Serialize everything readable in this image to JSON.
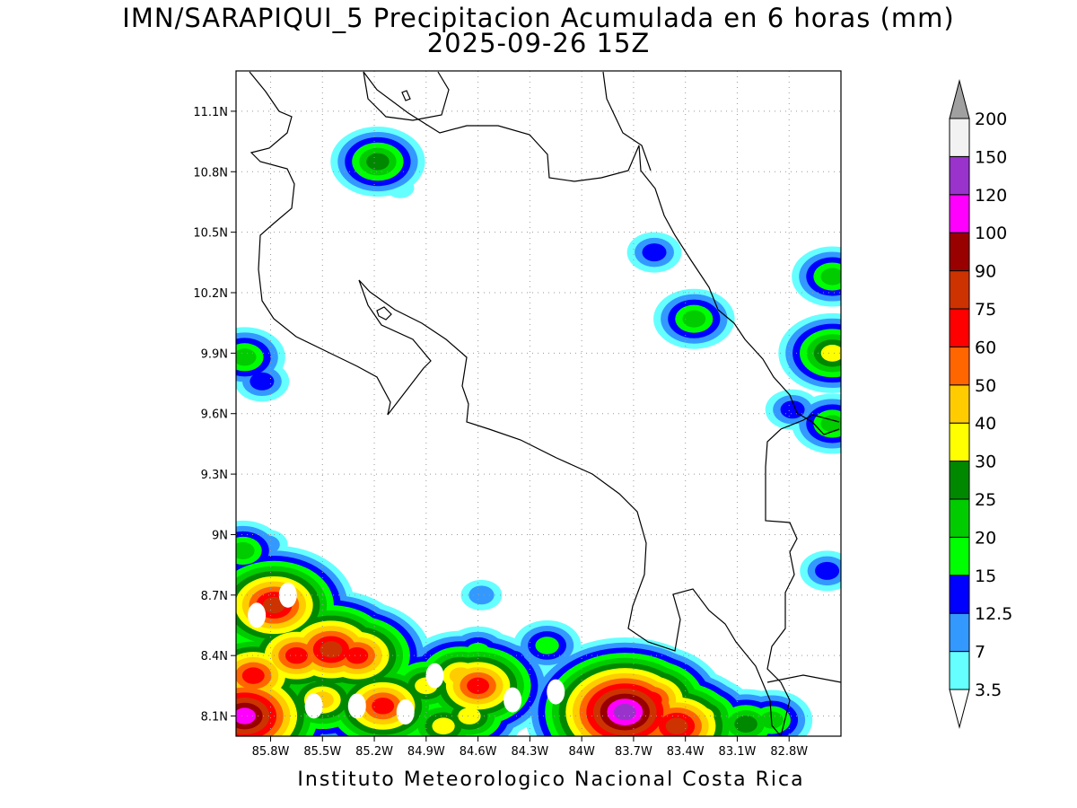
{
  "header": {
    "title": "IMN/SARAPIQUI_5 Precipitacion Acumulada en 6 horas (mm)",
    "valid_time": "2025-09-26 15Z"
  },
  "footer": {
    "credit": "Instituto Meteorologico Nacional Costa Rica"
  },
  "axes": {
    "lat_labels": [
      "11.1N",
      "10.8N",
      "10.5N",
      "10.2N",
      "9.9N",
      "9.6N",
      "9.3N",
      "9N",
      "8.7N",
      "8.4N",
      "8.1N"
    ],
    "lat_values": [
      11.1,
      10.8,
      10.5,
      10.2,
      9.9,
      9.6,
      9.3,
      9.0,
      8.7,
      8.4,
      8.1
    ],
    "lon_labels": [
      "85.8W",
      "85.5W",
      "85.2W",
      "84.9W",
      "84.6W",
      "84.3W",
      "84W",
      "83.7W",
      "83.4W",
      "83.1W",
      "82.8W"
    ],
    "lon_values": [
      -85.8,
      -85.5,
      -85.2,
      -84.9,
      -84.6,
      -84.3,
      -84.0,
      -83.7,
      -83.4,
      -83.1,
      -82.8
    ],
    "lon_range": [
      -86.0,
      -82.5
    ],
    "lat_range": [
      8.0,
      11.3
    ],
    "grid": true
  },
  "colorbar": {
    "unit": "mm",
    "levels": [
      {
        "label": "3.5",
        "color": "#66ffff"
      },
      {
        "label": "7",
        "color": "#3399ff"
      },
      {
        "label": "12.5",
        "color": "#0000ff"
      },
      {
        "label": "15",
        "color": "#00ff00"
      },
      {
        "label": "20",
        "color": "#00cc00"
      },
      {
        "label": "25",
        "color": "#008800"
      },
      {
        "label": "30",
        "color": "#ffff00"
      },
      {
        "label": "40",
        "color": "#ffcc00"
      },
      {
        "label": "50",
        "color": "#ff6600"
      },
      {
        "label": "60",
        "color": "#ff0000"
      },
      {
        "label": "75",
        "color": "#cc3300"
      },
      {
        "label": "90",
        "color": "#990000"
      },
      {
        "label": "100",
        "color": "#ff00ff"
      },
      {
        "label": "120",
        "color": "#9933cc"
      },
      {
        "label": "150",
        "color": "#f2f2f2"
      },
      {
        "label": "200",
        "color": "#a0a0a0"
      }
    ]
  },
  "rain_cells": [
    {
      "lon": -85.18,
      "lat": 10.85,
      "amount": 25
    },
    {
      "lon": -85.05,
      "lat": 10.72,
      "amount": 3.5
    },
    {
      "lon": -83.58,
      "lat": 10.4,
      "amount": 12.5
    },
    {
      "lon": -83.35,
      "lat": 10.07,
      "amount": 20
    },
    {
      "lon": -82.78,
      "lat": 9.62,
      "amount": 12.5
    },
    {
      "lon": -82.55,
      "lat": 9.9,
      "amount": 30
    },
    {
      "lon": -82.55,
      "lat": 9.55,
      "amount": 20
    },
    {
      "lon": -82.55,
      "lat": 10.28,
      "amount": 20
    },
    {
      "lon": -85.95,
      "lat": 9.88,
      "amount": 20
    },
    {
      "lon": -85.85,
      "lat": 9.76,
      "amount": 12.5
    },
    {
      "lon": -85.78,
      "lat": 8.65,
      "amount": 75
    },
    {
      "lon": -85.65,
      "lat": 8.4,
      "amount": 60
    },
    {
      "lon": -85.45,
      "lat": 8.43,
      "amount": 75
    },
    {
      "lon": -85.3,
      "lat": 8.4,
      "amount": 60
    },
    {
      "lon": -85.9,
      "lat": 8.3,
      "amount": 60
    },
    {
      "lon": -85.95,
      "lat": 8.1,
      "amount": 100
    },
    {
      "lon": -85.75,
      "lat": 8.15,
      "amount": 30
    },
    {
      "lon": -85.5,
      "lat": 8.18,
      "amount": 40
    },
    {
      "lon": -85.15,
      "lat": 8.15,
      "amount": 60
    },
    {
      "lon": -84.9,
      "lat": 8.25,
      "amount": 30
    },
    {
      "lon": -84.7,
      "lat": 8.3,
      "amount": 40
    },
    {
      "lon": -84.6,
      "lat": 8.25,
      "amount": 60
    },
    {
      "lon": -84.6,
      "lat": 8.42,
      "amount": 15
    },
    {
      "lon": -84.2,
      "lat": 8.45,
      "amount": 15
    },
    {
      "lon": -84.4,
      "lat": 8.38,
      "amount": 12.5
    },
    {
      "lon": -84.65,
      "lat": 8.1,
      "amount": 30
    },
    {
      "lon": -83.9,
      "lat": 8.12,
      "amount": 30
    },
    {
      "lon": -83.75,
      "lat": 8.12,
      "amount": 120
    },
    {
      "lon": -83.6,
      "lat": 8.18,
      "amount": 60
    },
    {
      "lon": -83.45,
      "lat": 8.05,
      "amount": 75
    },
    {
      "lon": -83.3,
      "lat": 8.1,
      "amount": 30
    },
    {
      "lon": -83.05,
      "lat": 8.06,
      "amount": 25
    },
    {
      "lon": -82.9,
      "lat": 8.08,
      "amount": 20
    },
    {
      "lon": -85.96,
      "lat": 8.92,
      "amount": 20
    },
    {
      "lon": -85.82,
      "lat": 8.95,
      "amount": 7
    },
    {
      "lon": -85.45,
      "lat": 8.7,
      "amount": 3.5
    },
    {
      "lon": -84.58,
      "lat": 8.7,
      "amount": 7
    },
    {
      "lon": -82.58,
      "lat": 8.82,
      "amount": 12.5
    },
    {
      "lon": -84.12,
      "lat": 8.05,
      "amount": 3.5
    },
    {
      "lon": -84.8,
      "lat": 8.05,
      "amount": 30
    }
  ],
  "dry_holes": [
    {
      "lon": -85.88,
      "lat": 8.6
    },
    {
      "lon": -85.55,
      "lat": 8.15
    },
    {
      "lon": -85.3,
      "lat": 8.15
    },
    {
      "lon": -85.02,
      "lat": 8.12
    },
    {
      "lon": -84.85,
      "lat": 8.3
    },
    {
      "lon": -84.4,
      "lat": 8.18
    },
    {
      "lon": -84.15,
      "lat": 8.22
    },
    {
      "lon": -85.7,
      "lat": 8.7
    }
  ]
}
